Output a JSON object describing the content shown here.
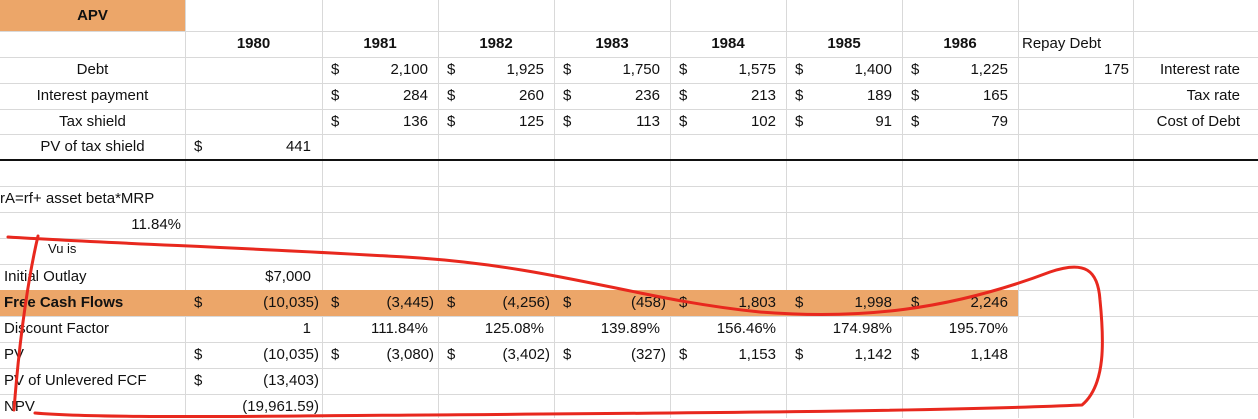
{
  "sheet": {
    "title": "APV",
    "years": [
      "1980",
      "1981",
      "1982",
      "1983",
      "1984",
      "1985",
      "1986"
    ],
    "repay_debt_label": "Repay Debt",
    "repay_debt_value": "175",
    "side_labels": [
      "Interest rate",
      "Tax rate",
      "Cost of Debt"
    ],
    "debt": {
      "label": "Debt",
      "values": [
        "2,100",
        "1,925",
        "1,750",
        "1,575",
        "1,400",
        "1,225"
      ]
    },
    "interest": {
      "label": "Interest payment",
      "values": [
        "284",
        "260",
        "236",
        "213",
        "189",
        "165"
      ]
    },
    "tax_shield": {
      "label": "Tax shield",
      "values": [
        "136",
        "125",
        "113",
        "102",
        "91",
        "79"
      ]
    },
    "pv_tax_shield": {
      "label": "PV of tax shield",
      "value": "441"
    },
    "ra_formula": "rA=rf+ asset beta*MRP",
    "ra_value": "11.84%",
    "vu_label": "Vu is",
    "initial_outlay": {
      "label": "Initial Outlay",
      "value": "$7,000"
    },
    "fcf": {
      "label": "Free Cash Flows",
      "values": [
        "(10,035)",
        "(3,445)",
        "(4,256)",
        "(458)",
        "1,803",
        "1,998",
        "2,246"
      ]
    },
    "discount_factor": {
      "label": "Discount Factor",
      "values": [
        "1",
        "111.84%",
        "125.08%",
        "139.89%",
        "156.46%",
        "174.98%",
        "195.70%"
      ]
    },
    "pv": {
      "label": "PV",
      "values": [
        "(10,035)",
        "(3,080)",
        "(3,402)",
        "(327)",
        "1,153",
        "1,142",
        "1,148"
      ]
    },
    "pv_unlevered": {
      "label": "PV of Unlevered FCF",
      "value": "(13,403)"
    },
    "npv": {
      "label": "NPV",
      "value": "(19,961.59)"
    },
    "currency_symbol": "$",
    "colors": {
      "header_band": "#eca669",
      "ink": "#e8281e",
      "grid": "#d9d9d9"
    }
  }
}
